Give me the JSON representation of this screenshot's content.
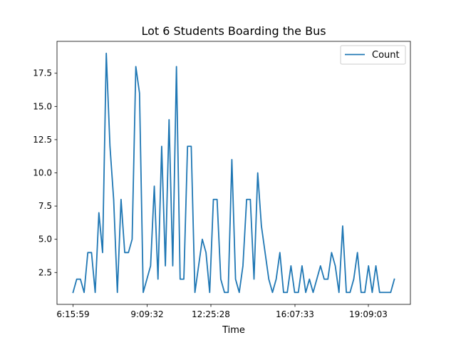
{
  "chart_data": {
    "type": "line",
    "title": "Lot 6 Students Boarding the Bus",
    "xlabel": "Time",
    "ylabel": "",
    "x_tick_labels": [
      "6:15:59",
      "9:09:32",
      "12:25:28",
      "16:07:33",
      "19:09:03"
    ],
    "y_ticks": [
      2.5,
      5.0,
      7.5,
      10.0,
      12.5,
      15.0,
      17.5
    ],
    "y_tick_labels": [
      "2.5",
      "5.0",
      "7.5",
      "10.0",
      "12.5",
      "15.0",
      "17.5"
    ],
    "ylim": [
      0.1,
      19.9
    ],
    "grid": false,
    "legend_position": "top-right",
    "color": "#1f77b4",
    "series": [
      {
        "name": "Count",
        "values": [
          1,
          2,
          2,
          1,
          4,
          4,
          1,
          7,
          4,
          19,
          12,
          8,
          1,
          8,
          4,
          4,
          5,
          18,
          16,
          1,
          2,
          3,
          9,
          2,
          12,
          3,
          14,
          3,
          18,
          2,
          2,
          12,
          12,
          1,
          3,
          5,
          4,
          1,
          8,
          8,
          2,
          1,
          1,
          11,
          2,
          1,
          3,
          8,
          8,
          2,
          10,
          6,
          4,
          2,
          1,
          2,
          4,
          1,
          1,
          3,
          1,
          1,
          3,
          1,
          2,
          1,
          2,
          3,
          2,
          2,
          4,
          3,
          1,
          6,
          1,
          1,
          2,
          4,
          1,
          1,
          3,
          1,
          3,
          1,
          1,
          1,
          1,
          2
        ]
      }
    ]
  }
}
